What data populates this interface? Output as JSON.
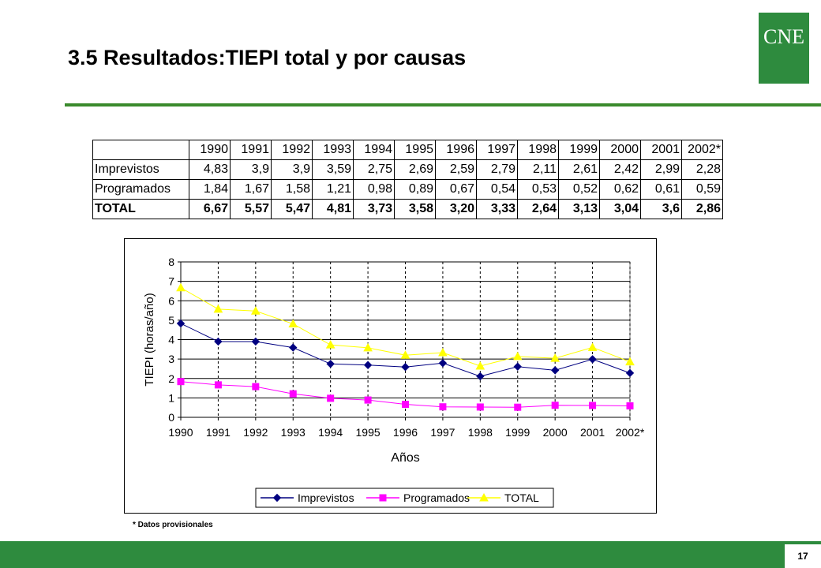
{
  "page": {
    "title": "3.5 Resultados:TIEPI total y por causas",
    "logo_text": "CNE",
    "footnote": "* Datos provisionales",
    "page_number": "17",
    "colors": {
      "green": "#2e8b3e",
      "rule": "#3a8a2c"
    }
  },
  "table": {
    "headers": [
      "",
      "1990",
      "1991",
      "1992",
      "1993",
      "1994",
      "1995",
      "1996",
      "1997",
      "1998",
      "1999",
      "2000",
      "2001",
      "2002*"
    ],
    "rows": [
      {
        "label": "Imprevistos",
        "values": [
          "4,83",
          "3,9",
          "3,9",
          "3,59",
          "2,75",
          "2,69",
          "2,59",
          "2,79",
          "2,11",
          "2,61",
          "2,42",
          "2,99",
          "2,28"
        ]
      },
      {
        "label": "Programados",
        "values": [
          "1,84",
          "1,67",
          "1,58",
          "1,21",
          "0,98",
          "0,89",
          "0,67",
          "0,54",
          "0,53",
          "0,52",
          "0,62",
          "0,61",
          "0,59"
        ]
      },
      {
        "label": "TOTAL",
        "values": [
          "6,67",
          "5,57",
          "5,47",
          "4,81",
          "3,73",
          "3,58",
          "3,20",
          "3,33",
          "2,64",
          "3,13",
          "3,04",
          "3,6",
          "2,86"
        ]
      }
    ]
  },
  "chart_data": {
    "type": "line",
    "categories": [
      "1990",
      "1991",
      "1992",
      "1993",
      "1994",
      "1995",
      "1996",
      "1997",
      "1998",
      "1999",
      "2000",
      "2001",
      "2002*"
    ],
    "xlabel": "Años",
    "ylabel": "TIEPI (horas/año)",
    "ylim": [
      0,
      8
    ],
    "yticks": [
      "0",
      "1",
      "2",
      "3",
      "4",
      "5",
      "6",
      "7",
      "8"
    ],
    "grid": {
      "horizontal": "solid",
      "vertical": "dashed"
    },
    "legend_position": "bottom",
    "series": [
      {
        "name": "Imprevistos",
        "color": "#000080",
        "marker": "diamond",
        "values": [
          4.83,
          3.9,
          3.9,
          3.59,
          2.75,
          2.69,
          2.59,
          2.79,
          2.11,
          2.61,
          2.42,
          2.99,
          2.28
        ]
      },
      {
        "name": "Programados",
        "color": "#ff00ff",
        "marker": "square",
        "values": [
          1.84,
          1.67,
          1.58,
          1.21,
          0.98,
          0.89,
          0.67,
          0.54,
          0.53,
          0.52,
          0.62,
          0.61,
          0.59
        ]
      },
      {
        "name": "TOTAL",
        "color": "#ffff00",
        "marker": "triangle",
        "values": [
          6.67,
          5.57,
          5.47,
          4.81,
          3.73,
          3.58,
          3.2,
          3.33,
          2.64,
          3.13,
          3.04,
          3.6,
          2.86
        ]
      }
    ]
  }
}
